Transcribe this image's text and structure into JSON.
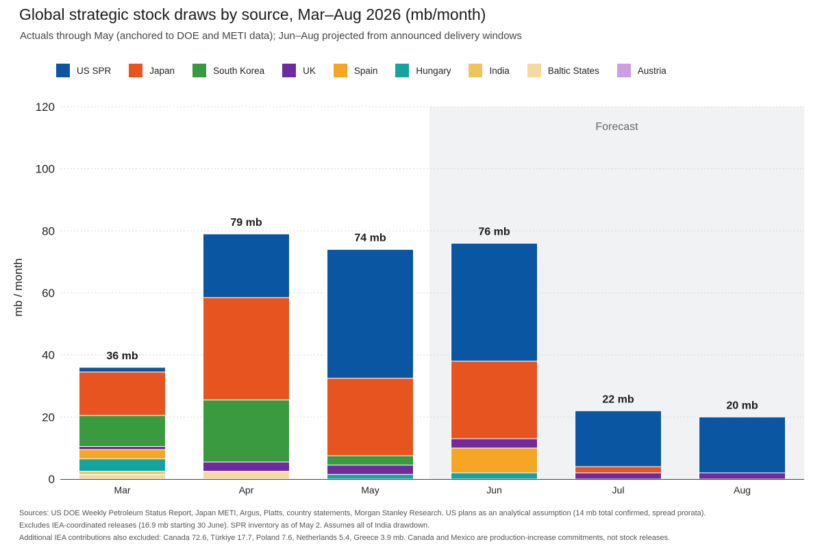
{
  "title": "Global strategic stock draws by source, Mar–Aug 2026 (mb/month)",
  "subtitle": "Actuals through May (anchored to DOE and METI data); Jun–Aug projected from announced delivery windows",
  "colors": {
    "US SPR": "#0a56a3",
    "Japan": "#e8541f",
    "South Korea": "#3a9a40",
    "UK": "#6e2b9e",
    "Spain": "#f5a623",
    "Hungary": "#14a4a0",
    "India": "#efc45e",
    "Baltic States": "#f6d9a0",
    "Austria": "#cf9de3"
  },
  "chart_data": {
    "type": "bar",
    "stacked": true,
    "ylabel": "mb / month",
    "ylim": [
      0,
      120
    ],
    "yticks": [
      0,
      20,
      40,
      60,
      80,
      100,
      120
    ],
    "grid": true,
    "legend_position": "top",
    "forecast_label": "Forecast",
    "forecast_start_category": "Jun",
    "categories": [
      "Mar",
      "Apr",
      "May",
      "Jun",
      "Jul",
      "Aug"
    ],
    "totals_labels": [
      "36 mb",
      "79 mb",
      "74 mb",
      "76 mb",
      "22 mb",
      "20 mb"
    ],
    "series": [
      {
        "name": "Baltic States",
        "values": [
          1.5,
          2.5,
          0,
          0,
          0,
          0
        ]
      },
      {
        "name": "India",
        "values": [
          1.0,
          0,
          0,
          0,
          0,
          0
        ]
      },
      {
        "name": "Hungary",
        "values": [
          4.0,
          0,
          1.5,
          2.0,
          0,
          0
        ]
      },
      {
        "name": "Spain",
        "values": [
          3.0,
          0,
          0,
          8.0,
          0,
          0
        ]
      },
      {
        "name": "UK",
        "values": [
          1.0,
          3.0,
          3.0,
          3.0,
          2.0,
          2.0
        ]
      },
      {
        "name": "South Korea",
        "values": [
          10.0,
          20.0,
          3.0,
          0,
          0,
          0
        ]
      },
      {
        "name": "Japan",
        "values": [
          14.0,
          33.0,
          25.0,
          25.0,
          2.0,
          0
        ]
      },
      {
        "name": "US SPR",
        "values": [
          1.5,
          20.5,
          41.5,
          38.0,
          18.0,
          18.0
        ]
      },
      {
        "name": "Austria",
        "values": [
          0,
          0,
          0,
          0,
          0,
          0
        ]
      }
    ]
  },
  "legend": [
    "US SPR",
    "Japan",
    "South Korea",
    "UK",
    "Spain",
    "Hungary",
    "India",
    "Baltic States",
    "Austria"
  ],
  "footnotes": [
    "Sources: US DOE Weekly Petroleum Status Report, Japan METI, Argus, Platts, country statements, Morgan Stanley Research. US plans as an analytical assumption (14 mb total confirmed, spread prorata).",
    "Excludes IEA-coordinated releases (16.9 mb starting 30 June). SPR inventory as of May 2. Assumes all of India drawdown.",
    "Additional IEA contributions also excluded: Canada 72.6, Türkiye 17.7, Poland 7.6, Netherlands 5.4, Greece 3.9 mb. Canada and Mexico are production-increase commitments, not stock releases."
  ]
}
